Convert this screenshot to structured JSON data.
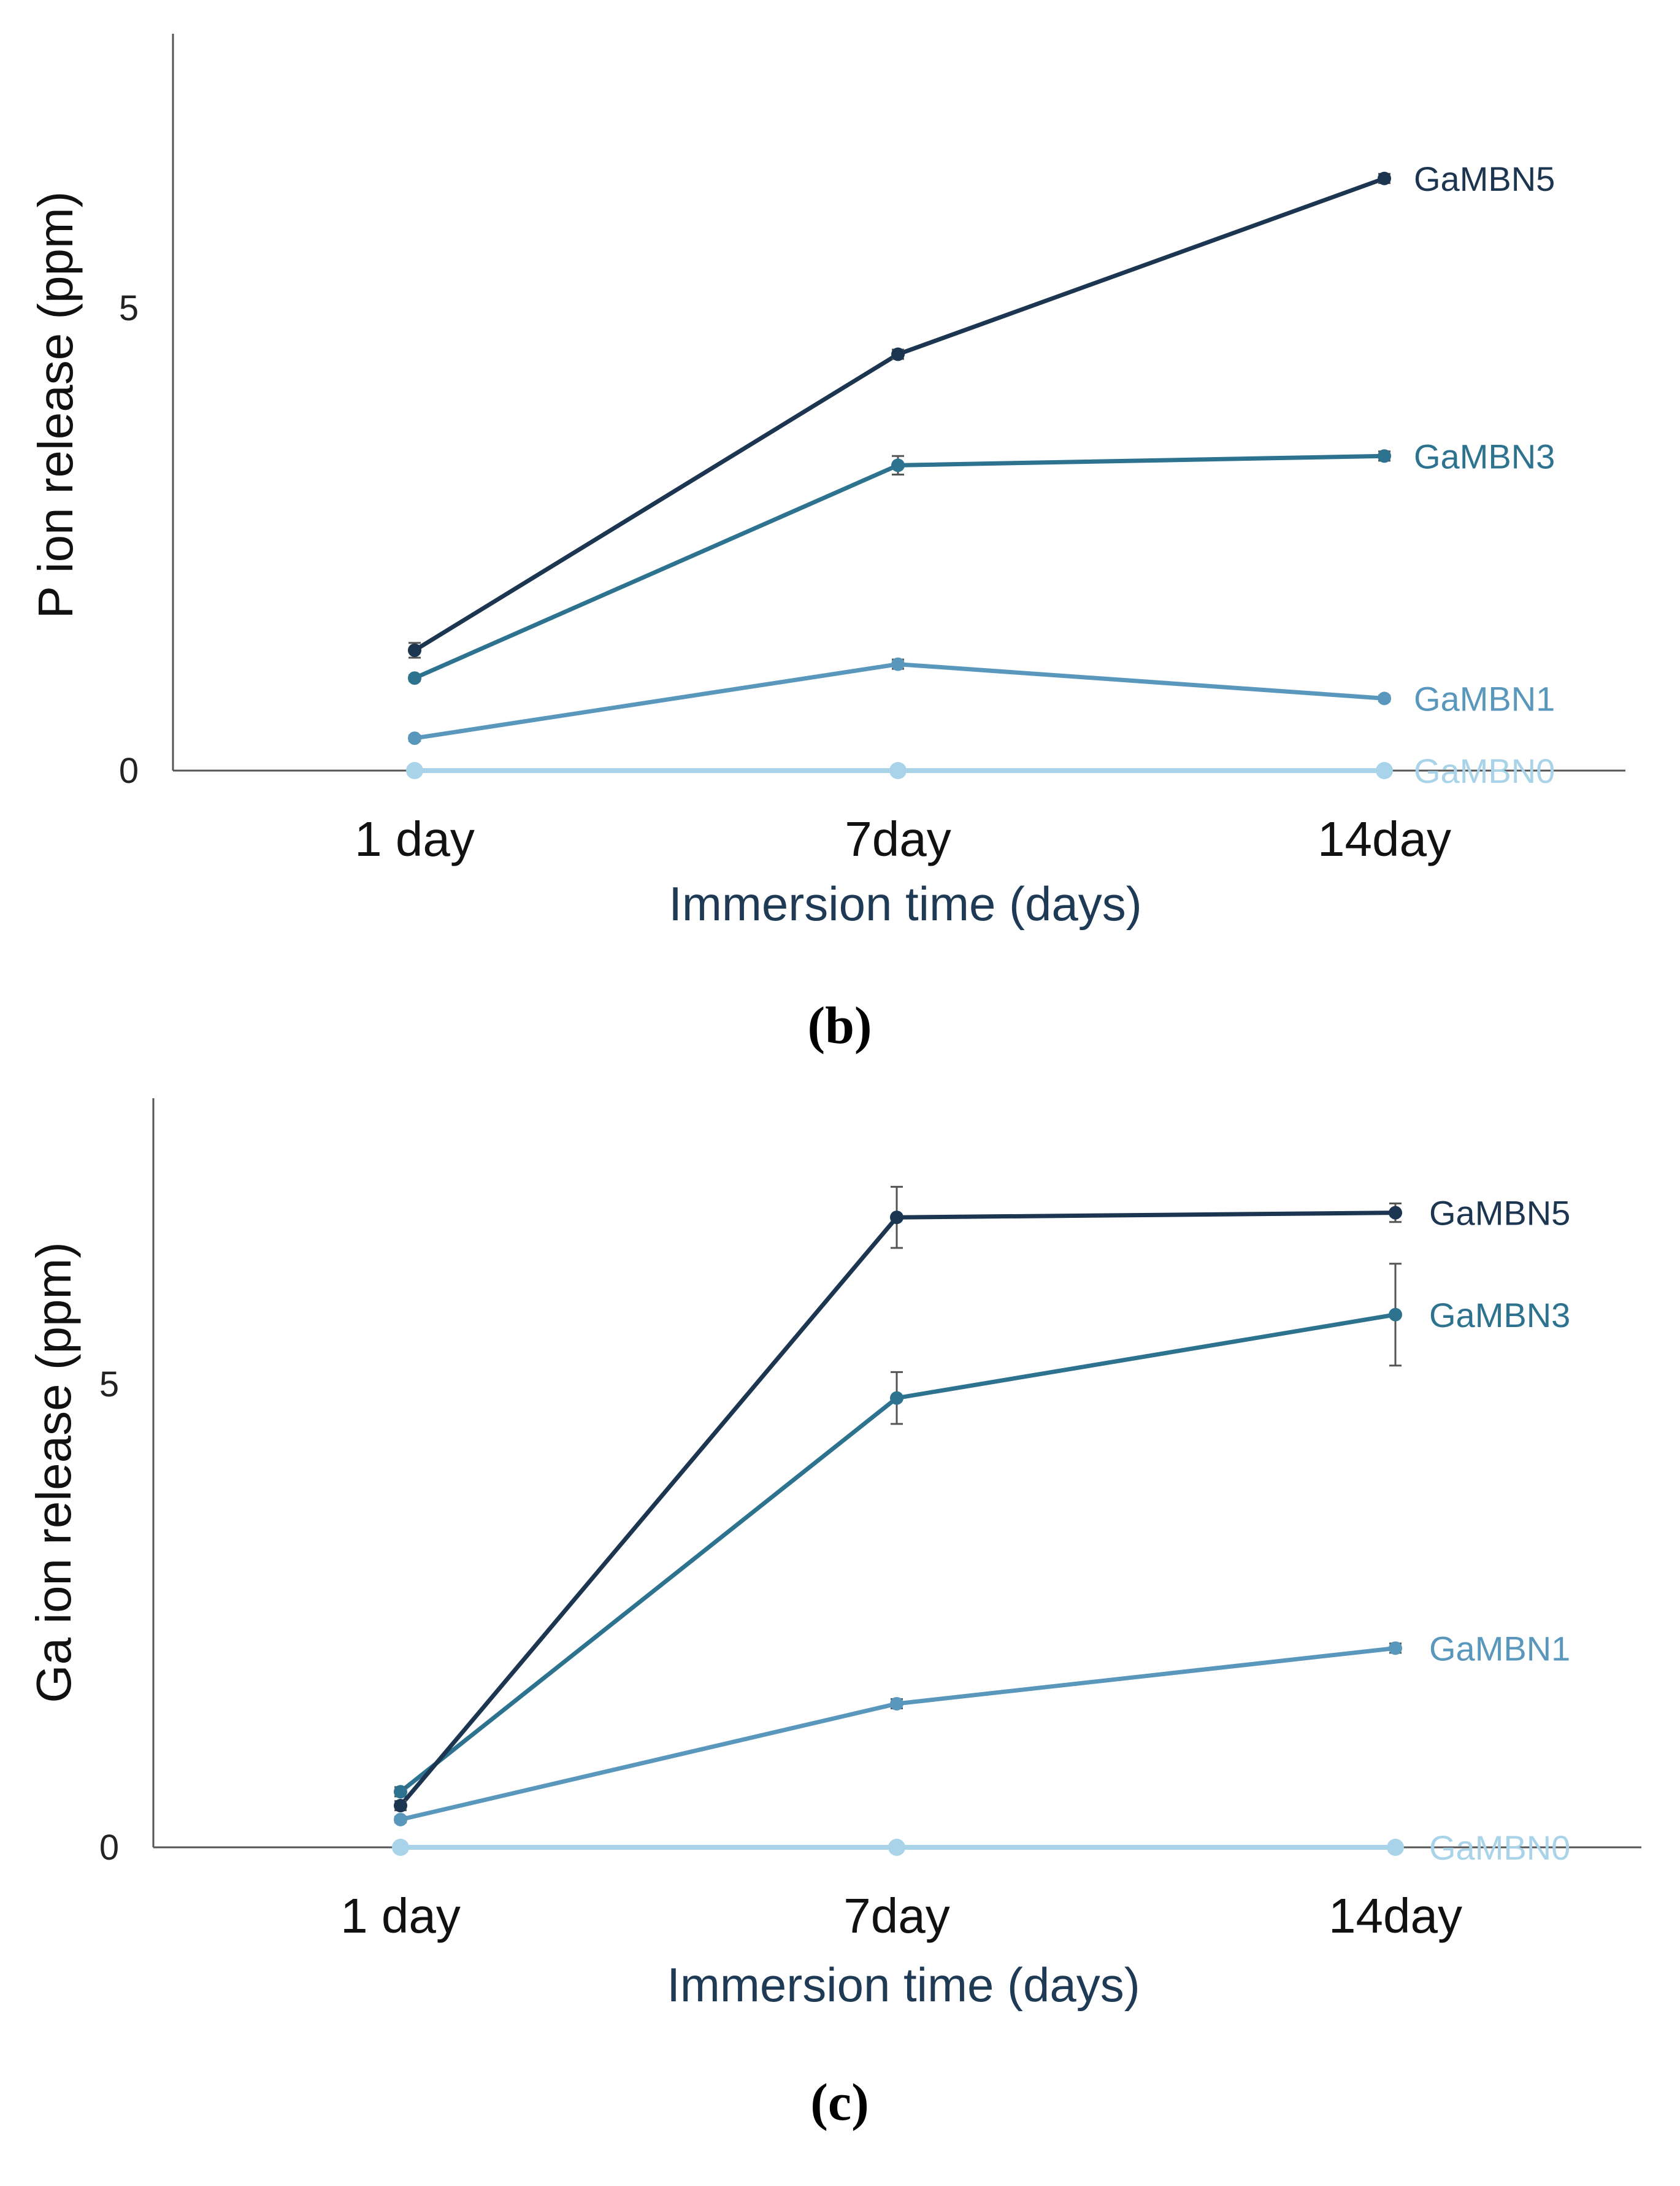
{
  "colors": {
    "GaMBN5": "#1c3550",
    "GaMBN3": "#2d7390",
    "GaMBN1": "#5a97bd",
    "GaMBN0": "#a8d3e8",
    "axis_text": "#1e3a55",
    "errorbar": "#555555"
  },
  "panel_b": {
    "letter": "b",
    "open": "(",
    "close": ")"
  },
  "panel_c": {
    "letter": "c",
    "open": "(",
    "close": ")"
  },
  "chart_data": [
    {
      "type": "line",
      "panel": "b",
      "xlabel": "Immersion time (days)",
      "ylabel": "P ion release (ppm)",
      "categories": [
        "1 day",
        "7day",
        "14day"
      ],
      "yticks": [
        "0",
        "5"
      ],
      "ylim": [
        0,
        8
      ],
      "grid": false,
      "series": [
        {
          "name": "GaMBN5",
          "values": [
            1.3,
            4.5,
            6.4
          ],
          "errors": [
            0.08,
            0.05,
            0.05
          ]
        },
        {
          "name": "GaMBN3",
          "values": [
            1.0,
            3.3,
            3.4
          ],
          "errors": [
            0.03,
            0.1,
            0.05
          ]
        },
        {
          "name": "GaMBN1",
          "values": [
            0.35,
            1.15,
            0.78
          ],
          "errors": [
            0.03,
            0.05,
            0.03
          ]
        },
        {
          "name": "GaMBN0",
          "values": [
            0.0,
            0.0,
            0.0
          ],
          "errors": [
            0,
            0,
            0
          ]
        }
      ]
    },
    {
      "type": "line",
      "panel": "c",
      "xlabel": "Immersion time (days)",
      "ylabel": "Ga ion release (ppm)",
      "categories": [
        "1 day",
        "7day",
        "14day"
      ],
      "yticks": [
        "0",
        "5"
      ],
      "ylim": [
        0,
        8
      ],
      "grid": false,
      "series": [
        {
          "name": "GaMBN5",
          "values": [
            0.45,
            6.8,
            6.85
          ],
          "errors": [
            0.05,
            0.33,
            0.1
          ]
        },
        {
          "name": "GaMBN3",
          "values": [
            0.6,
            4.85,
            5.75
          ],
          "errors": [
            0.05,
            0.28,
            0.55
          ]
        },
        {
          "name": "GaMBN1",
          "values": [
            0.3,
            1.55,
            2.15
          ],
          "errors": [
            0.03,
            0.05,
            0.05
          ]
        },
        {
          "name": "GaMBN0",
          "values": [
            0.0,
            0.0,
            0.0
          ],
          "errors": [
            0,
            0,
            0
          ]
        }
      ]
    }
  ]
}
